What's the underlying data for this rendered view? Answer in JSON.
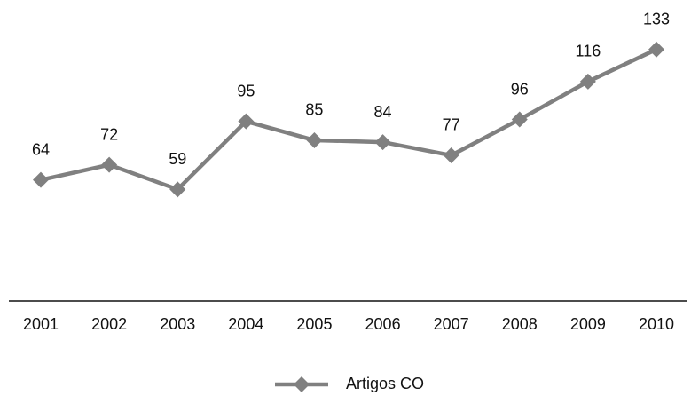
{
  "chart_data": {
    "type": "line",
    "categories": [
      "2001",
      "2002",
      "2003",
      "2004",
      "2005",
      "2006",
      "2007",
      "2008",
      "2009",
      "2010"
    ],
    "series": [
      {
        "name": "Artigos CO",
        "color": "#808080",
        "values": [
          64,
          72,
          59,
          95,
          85,
          84,
          77,
          96,
          116,
          133
        ]
      }
    ],
    "ylim": [
      0,
      150
    ],
    "legend": "bottom"
  }
}
